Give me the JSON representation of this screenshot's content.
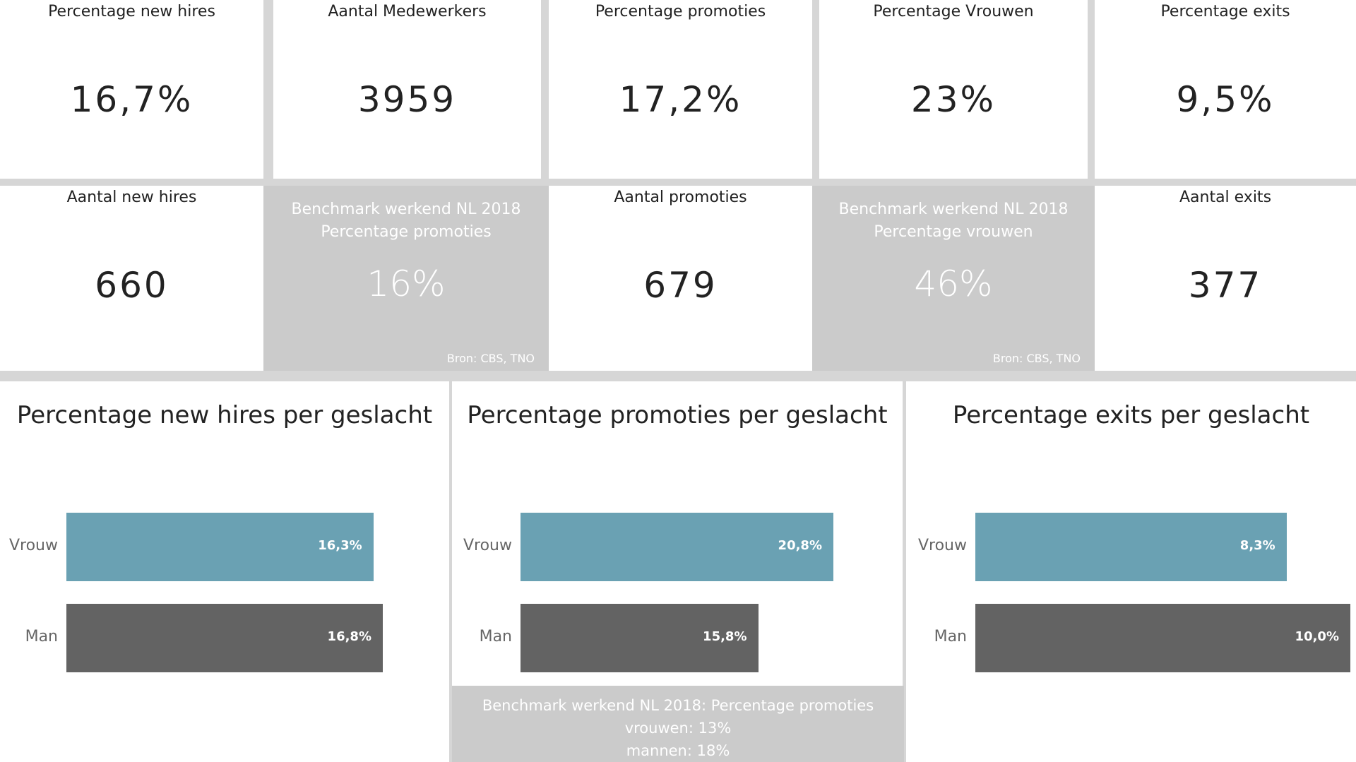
{
  "kpis": [
    {
      "label": "Percentage new hires",
      "value": "16,7%"
    },
    {
      "label": "Aantal Medewerkers",
      "value": "3959"
    },
    {
      "label": "Percentage promoties",
      "value": "17,2%"
    },
    {
      "label": "Percentage Vrouwen",
      "value": "23%"
    },
    {
      "label": "Percentage exits",
      "value": "9,5%"
    },
    {
      "label": "Aantal new hires",
      "value": "660"
    },
    {
      "label1": "Benchmark werkend NL 2018",
      "label2": "Percentage promoties",
      "value": "16%",
      "source": "Bron: CBS, TNO"
    },
    {
      "label": "Aantal promoties",
      "value": "679"
    },
    {
      "label1": "Benchmark werkend NL 2018",
      "label2": "Percentage vrouwen",
      "value": "46%",
      "source": "Bron: CBS, TNO"
    },
    {
      "label": "Aantal exits",
      "value": "377"
    }
  ],
  "colors": {
    "vrouw": "#6aa1b3",
    "man": "#636363"
  },
  "chart_data": [
    {
      "type": "bar",
      "title": "Percentage new hires per geslacht",
      "categories": [
        "Vrouw",
        "Man"
      ],
      "values": [
        16.3,
        16.8
      ],
      "labels": [
        "16,3%",
        "16,8%"
      ]
    },
    {
      "type": "bar",
      "title": "Percentage promoties per geslacht",
      "categories": [
        "Vrouw",
        "Man"
      ],
      "values": [
        20.8,
        15.8
      ],
      "labels": [
        "20,8%",
        "15,8%"
      ]
    },
    {
      "type": "bar",
      "title": "Percentage exits per geslacht",
      "categories": [
        "Vrouw",
        "Man"
      ],
      "values": [
        8.3,
        10.0
      ],
      "labels": [
        "8,3%",
        "10,0%"
      ]
    }
  ],
  "benchmark": {
    "line1": "Benchmark werkend NL 2018: Percentage promoties",
    "line2": "vrouwen: 13%",
    "line3": "mannen: 18%"
  }
}
